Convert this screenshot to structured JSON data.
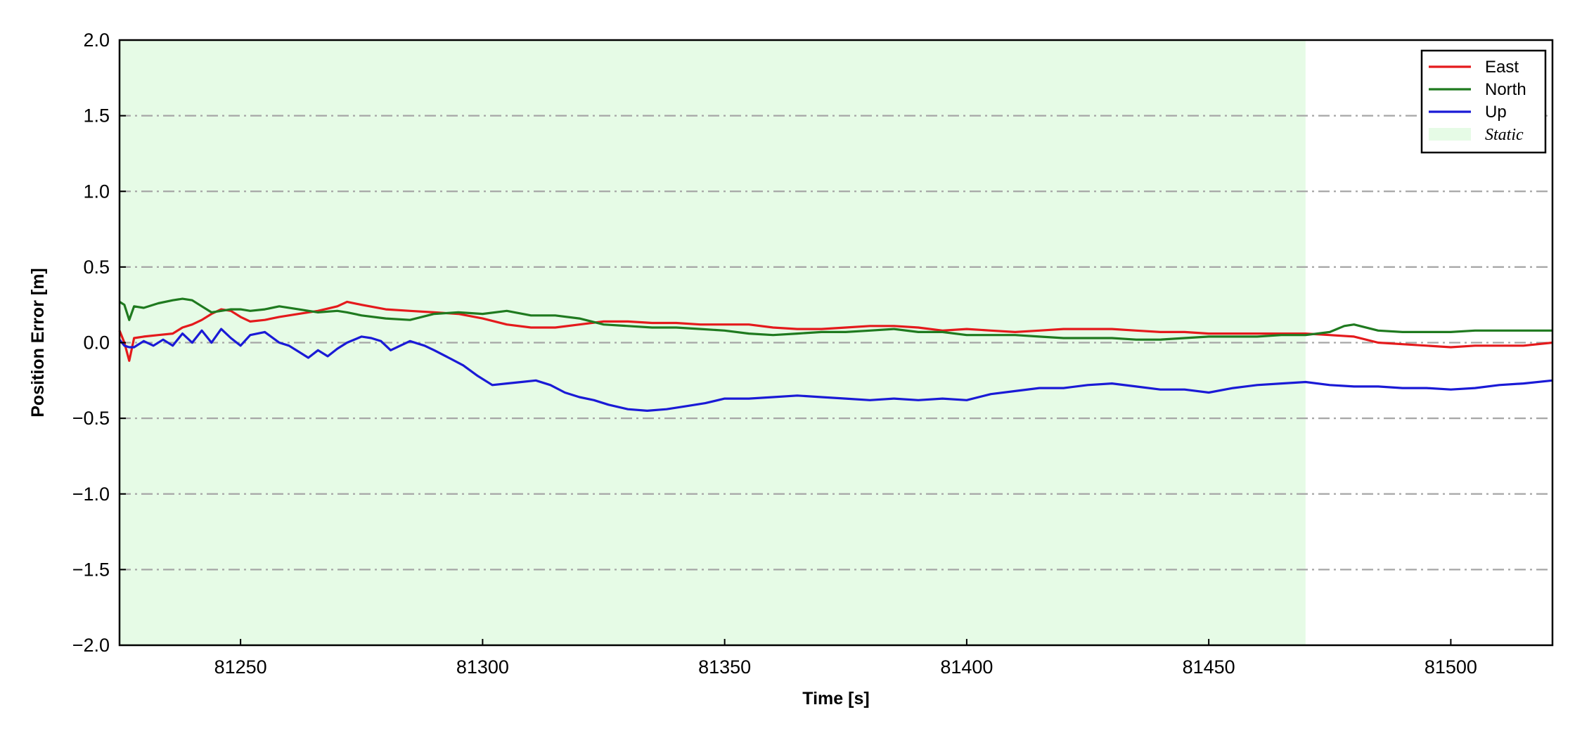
{
  "chart_data": {
    "type": "line",
    "xlabel": "Time [s]",
    "ylabel": "Position Error [m]",
    "xlim": [
      81225,
      81521
    ],
    "ylim": [
      -2.0,
      2.0
    ],
    "xticks": [
      81250,
      81300,
      81350,
      81400,
      81450,
      81500
    ],
    "xtick_labels": [
      "81250",
      "81300",
      "81350",
      "81400",
      "81450",
      "81500"
    ],
    "yticks": [
      -2.0,
      -1.5,
      -1.0,
      -0.5,
      0.0,
      0.5,
      1.0,
      1.5,
      2.0
    ],
    "ytick_labels": [
      "−2.0",
      "−1.5",
      "−1.0",
      "−0.5",
      "0.0",
      "0.5",
      "1.0",
      "1.5",
      "2.0"
    ],
    "grid": "horizontal dash-dot",
    "legend": {
      "position": "top-right"
    },
    "static_region": {
      "label": "Static",
      "x_start": 81225,
      "x_end": 81470,
      "color": "#e6fbe6"
    },
    "series": [
      {
        "name": "East",
        "color": "#e41a1c",
        "x": [
          81225,
          81226,
          81227,
          81228,
          81230,
          81233,
          81236,
          81238,
          81240,
          81242,
          81244,
          81246,
          81248,
          81250,
          81252,
          81255,
          81258,
          81262,
          81266,
          81270,
          81272,
          81275,
          81280,
          81285,
          81290,
          81295,
          81300,
          81305,
          81310,
          81315,
          81320,
          81325,
          81330,
          81335,
          81340,
          81345,
          81350,
          81355,
          81360,
          81365,
          81370,
          81375,
          81380,
          81385,
          81390,
          81395,
          81400,
          81405,
          81410,
          81415,
          81420,
          81425,
          81430,
          81435,
          81440,
          81445,
          81450,
          81455,
          81460,
          81465,
          81470,
          81475,
          81480,
          81485,
          81490,
          81495,
          81500,
          81505,
          81510,
          81515,
          81521
        ],
        "y": [
          0.08,
          0.0,
          -0.12,
          0.03,
          0.04,
          0.05,
          0.06,
          0.1,
          0.12,
          0.15,
          0.19,
          0.22,
          0.21,
          0.17,
          0.14,
          0.15,
          0.17,
          0.19,
          0.21,
          0.24,
          0.27,
          0.25,
          0.22,
          0.21,
          0.2,
          0.19,
          0.16,
          0.12,
          0.1,
          0.1,
          0.12,
          0.14,
          0.14,
          0.13,
          0.13,
          0.12,
          0.12,
          0.12,
          0.1,
          0.09,
          0.09,
          0.1,
          0.11,
          0.11,
          0.1,
          0.08,
          0.09,
          0.08,
          0.07,
          0.08,
          0.09,
          0.09,
          0.09,
          0.08,
          0.07,
          0.07,
          0.06,
          0.06,
          0.06,
          0.06,
          0.06,
          0.05,
          0.04,
          0.0,
          -0.01,
          -0.02,
          -0.03,
          -0.02,
          -0.02,
          -0.02,
          0.0
        ]
      },
      {
        "name": "North",
        "color": "#1f7a1f",
        "x": [
          81225,
          81226,
          81227,
          81228,
          81230,
          81233,
          81236,
          81238,
          81240,
          81242,
          81244,
          81246,
          81248,
          81250,
          81252,
          81255,
          81258,
          81262,
          81266,
          81270,
          81272,
          81275,
          81280,
          81285,
          81290,
          81295,
          81300,
          81305,
          81310,
          81315,
          81320,
          81325,
          81330,
          81335,
          81340,
          81345,
          81350,
          81355,
          81360,
          81365,
          81370,
          81375,
          81380,
          81385,
          81390,
          81395,
          81400,
          81405,
          81410,
          81415,
          81420,
          81425,
          81430,
          81435,
          81440,
          81445,
          81450,
          81455,
          81460,
          81465,
          81470,
          81475,
          81478,
          81480,
          81485,
          81490,
          81495,
          81500,
          81505,
          81510,
          81515,
          81521
        ],
        "y": [
          0.27,
          0.25,
          0.15,
          0.24,
          0.23,
          0.26,
          0.28,
          0.29,
          0.28,
          0.24,
          0.2,
          0.21,
          0.22,
          0.22,
          0.21,
          0.22,
          0.24,
          0.22,
          0.2,
          0.21,
          0.2,
          0.18,
          0.16,
          0.15,
          0.19,
          0.2,
          0.19,
          0.21,
          0.18,
          0.18,
          0.16,
          0.12,
          0.11,
          0.1,
          0.1,
          0.09,
          0.08,
          0.06,
          0.05,
          0.06,
          0.07,
          0.07,
          0.08,
          0.09,
          0.07,
          0.07,
          0.05,
          0.05,
          0.05,
          0.04,
          0.03,
          0.03,
          0.03,
          0.02,
          0.02,
          0.03,
          0.04,
          0.04,
          0.04,
          0.05,
          0.05,
          0.07,
          0.11,
          0.12,
          0.08,
          0.07,
          0.07,
          0.07,
          0.08,
          0.08,
          0.08,
          0.08
        ]
      },
      {
        "name": "Up",
        "color": "#1a1ad6",
        "x": [
          81225,
          81226,
          81227,
          81228,
          81230,
          81232,
          81234,
          81236,
          81238,
          81240,
          81242,
          81244,
          81246,
          81248,
          81250,
          81252,
          81255,
          81258,
          81260,
          81262,
          81264,
          81266,
          81268,
          81270,
          81272,
          81275,
          81277,
          81279,
          81281,
          81283,
          81285,
          81288,
          81290,
          81293,
          81296,
          81299,
          81302,
          81305,
          81308,
          81311,
          81314,
          81317,
          81320,
          81323,
          81326,
          81330,
          81334,
          81338,
          81342,
          81346,
          81350,
          81355,
          81360,
          81365,
          81370,
          81375,
          81380,
          81385,
          81390,
          81395,
          81400,
          81405,
          81410,
          81415,
          81420,
          81425,
          81430,
          81435,
          81440,
          81445,
          81450,
          81455,
          81460,
          81465,
          81470,
          81475,
          81480,
          81485,
          81490,
          81495,
          81500,
          81505,
          81510,
          81515,
          81521
        ],
        "y": [
          0.02,
          -0.02,
          -0.03,
          -0.03,
          0.01,
          -0.02,
          0.02,
          -0.02,
          0.06,
          0.0,
          0.08,
          0.0,
          0.09,
          0.03,
          -0.02,
          0.05,
          0.07,
          0.0,
          -0.02,
          -0.06,
          -0.1,
          -0.05,
          -0.09,
          -0.04,
          0.0,
          0.04,
          0.03,
          0.01,
          -0.05,
          -0.02,
          0.01,
          -0.02,
          -0.05,
          -0.1,
          -0.15,
          -0.22,
          -0.28,
          -0.27,
          -0.26,
          -0.25,
          -0.28,
          -0.33,
          -0.36,
          -0.38,
          -0.41,
          -0.44,
          -0.45,
          -0.44,
          -0.42,
          -0.4,
          -0.37,
          -0.37,
          -0.36,
          -0.35,
          -0.36,
          -0.37,
          -0.38,
          -0.37,
          -0.38,
          -0.37,
          -0.38,
          -0.34,
          -0.32,
          -0.3,
          -0.3,
          -0.28,
          -0.27,
          -0.29,
          -0.31,
          -0.31,
          -0.33,
          -0.3,
          -0.28,
          -0.27,
          -0.26,
          -0.28,
          -0.29,
          -0.29,
          -0.3,
          -0.3,
          -0.31,
          -0.3,
          -0.28,
          -0.27,
          -0.25
        ]
      }
    ]
  }
}
